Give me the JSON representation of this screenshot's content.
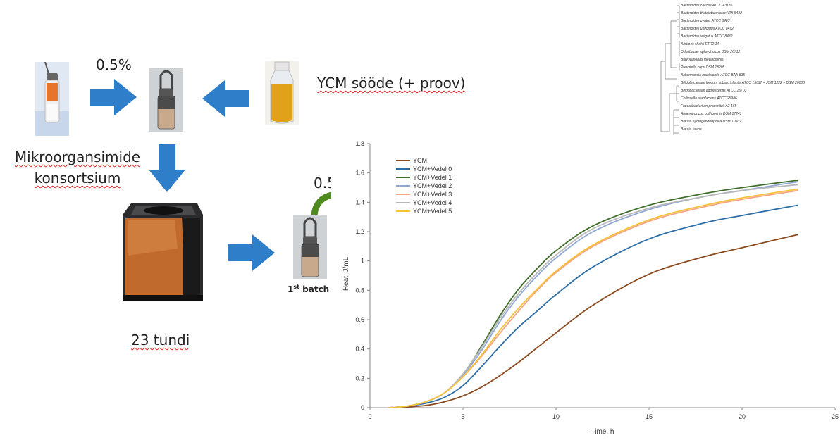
{
  "flow": {
    "top_percent": "0.5%",
    "medium_label": "YCM sööde (+ proov)",
    "consortium_line1": "Mikroorgansimide",
    "consortium_line2": "konsortsium",
    "duration": "23 tundi",
    "second_percent": "0.5",
    "batch_label": "1st batch",
    "batch_ordinal": "1",
    "batch_sup": "st",
    "batch_word": "batch",
    "arrow_color": "#2f7ec9",
    "curve_arrow_color": "#4f8a1f"
  },
  "tree": {
    "taxa": [
      "Bacteroides caccae ATCC 43185",
      "Bacteroides thetaiotaomicron VPI-5482",
      "Bacteroides ovatus ATCC 8483",
      "Bacteroides uniformis ATCC 8492",
      "Bacteroides vulgatus ATCC 8482",
      "Alistipes shahii ETR2 14",
      "Odoribacter splanchnicus DSM 20712",
      "Butyricimonas faecihominis",
      "Prevotella copri DSM 18205",
      "Akkermansia muciniphila ATCC BAA-835",
      "Bifidobacterium longum subsp. infantis ATCC 15697 = JCM 1222 = DSM 20088",
      "Bifidobacterium adolescentis ATCC 15703",
      "Collinsella aerofaciens ATCC 25986",
      "Faecalibacterium prausnitzii A2-165",
      "Anaerotruncus colihominis DSM 17241",
      "Blautia hydrogenotrophica DSM 10507",
      "Blautia faecis"
    ]
  },
  "chart_data": {
    "type": "line",
    "xlabel": "Time, h",
    "ylabel": "Heat, J/mL",
    "xlim": [
      0,
      25
    ],
    "ylim": [
      0,
      1.8
    ],
    "xticks": [
      0,
      5,
      10,
      15,
      20,
      25
    ],
    "yticks": [
      0,
      0.2,
      0.4,
      0.6,
      0.8,
      1,
      1.2,
      1.4,
      1.6,
      1.8
    ],
    "ytick_labels": [
      "0",
      "0.2",
      "0.4",
      "0.6",
      "0.8",
      "1",
      "1.2",
      "1.4",
      "1.6",
      "1.8"
    ],
    "grid": false,
    "legend_position": "top-left",
    "x": [
      1,
      2,
      3,
      4,
      5,
      6,
      7,
      8,
      9,
      10,
      12,
      15,
      18,
      20,
      23
    ],
    "series": [
      {
        "name": "YCM",
        "color": "#8b4a1e",
        "values": [
          0,
          0.005,
          0.015,
          0.04,
          0.08,
          0.14,
          0.22,
          0.31,
          0.41,
          0.51,
          0.7,
          0.91,
          1.03,
          1.09,
          1.18
        ]
      },
      {
        "name": "YCM+Vedel 0",
        "color": "#2e6ea6",
        "values": [
          0,
          0.01,
          0.03,
          0.07,
          0.15,
          0.28,
          0.42,
          0.55,
          0.66,
          0.77,
          0.96,
          1.15,
          1.26,
          1.31,
          1.38
        ]
      },
      {
        "name": "YCM+Vedel 1",
        "color": "#3f6e2a",
        "values": [
          0,
          0.01,
          0.04,
          0.1,
          0.22,
          0.42,
          0.63,
          0.81,
          0.95,
          1.07,
          1.24,
          1.38,
          1.46,
          1.5,
          1.55
        ]
      },
      {
        "name": "YCM+Vedel 2",
        "color": "#8fa8d4",
        "values": [
          0,
          0.01,
          0.04,
          0.1,
          0.22,
          0.39,
          0.59,
          0.76,
          0.9,
          1.02,
          1.2,
          1.35,
          1.44,
          1.48,
          1.54
        ]
      },
      {
        "name": "YCM+Vedel 3",
        "color": "#f4a582",
        "values": [
          0,
          0.01,
          0.04,
          0.1,
          0.21,
          0.35,
          0.51,
          0.66,
          0.8,
          0.92,
          1.1,
          1.27,
          1.37,
          1.42,
          1.48
        ]
      },
      {
        "name": "YCM+Vedel 4",
        "color": "#b8b8b8",
        "values": [
          0,
          0.01,
          0.04,
          0.1,
          0.23,
          0.41,
          0.61,
          0.78,
          0.92,
          1.04,
          1.22,
          1.36,
          1.44,
          1.48,
          1.52
        ]
      },
      {
        "name": "YCM+Vedel 5",
        "color": "#f5c33b",
        "values": [
          0,
          0.01,
          0.04,
          0.1,
          0.21,
          0.36,
          0.53,
          0.68,
          0.81,
          0.93,
          1.11,
          1.28,
          1.38,
          1.43,
          1.49
        ]
      }
    ]
  }
}
